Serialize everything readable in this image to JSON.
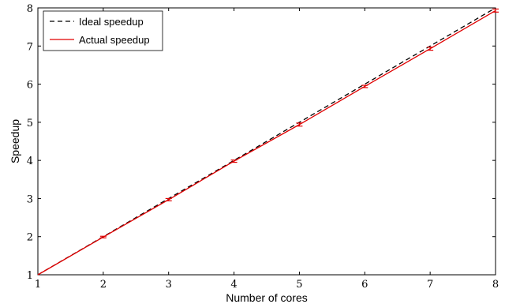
{
  "chart_data": {
    "type": "line",
    "xlabel": "Number of cores",
    "ylabel": "Speedup",
    "xlim": [
      1,
      8
    ],
    "ylim": [
      1,
      8
    ],
    "xticks": [
      "1",
      "2",
      "3",
      "4",
      "5",
      "6",
      "7",
      "8"
    ],
    "yticks": [
      "1",
      "2",
      "3",
      "4",
      "5",
      "6",
      "7",
      "8"
    ],
    "grid": false,
    "legend_position": "top-left",
    "series": [
      {
        "name": "Ideal speedup",
        "style": "dashed",
        "color": "#000000",
        "x": [
          1,
          2,
          3,
          4,
          5,
          6,
          7,
          8
        ],
        "y": [
          1,
          2,
          3,
          4,
          5,
          6,
          7,
          8
        ]
      },
      {
        "name": "Actual speedup",
        "style": "solid",
        "color": "#e00000",
        "x": [
          1,
          2,
          3,
          4,
          5,
          6,
          7,
          8
        ],
        "y": [
          1,
          1.99,
          2.97,
          3.98,
          4.94,
          5.94,
          6.93,
          7.93
        ],
        "error": [
          0,
          0.02,
          0.03,
          0.03,
          0.04,
          0.03,
          0.04,
          0.04
        ]
      }
    ]
  }
}
